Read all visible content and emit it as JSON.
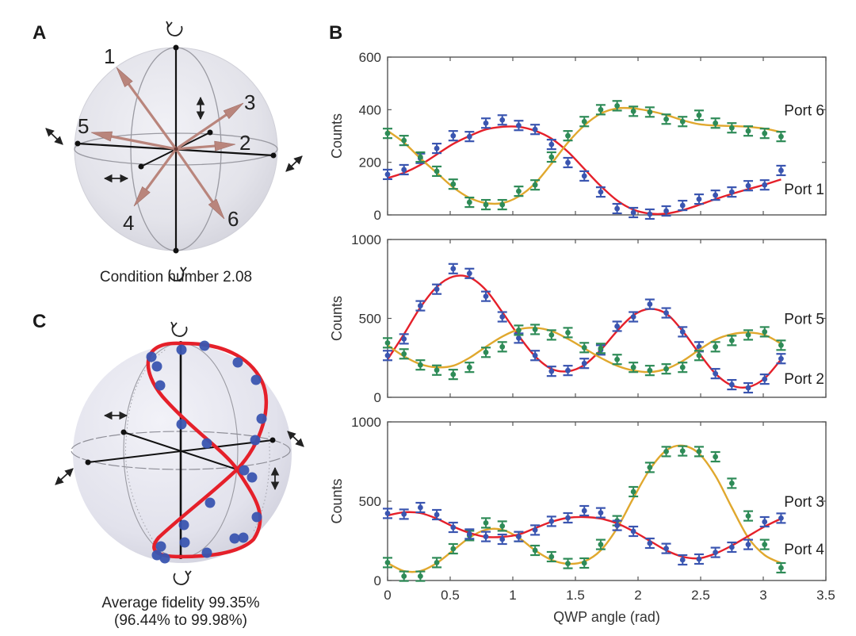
{
  "panels": {
    "A": {
      "letter": "A",
      "caption": "Condition number 2.08",
      "vector_labels": [
        "1",
        "2",
        "3",
        "4",
        "5",
        "6"
      ],
      "arrow_color": "#b9857c"
    },
    "B": {
      "letter": "B"
    },
    "C": {
      "letter": "C",
      "caption_line1": "Average fidelity 99.35%",
      "caption_line2": "(96.44% to 99.98%)",
      "curve_color": "#e5202a",
      "point_color": "#3a55b0"
    }
  },
  "chart_data": [
    {
      "type": "scatter",
      "panel": "B-top",
      "xlabel": "",
      "ylabel": "Counts",
      "xlim": [
        0,
        3.5
      ],
      "ylim": [
        0,
        600
      ],
      "xticks": [
        0,
        0.5,
        1,
        1.5,
        2,
        2.5,
        3,
        3.5
      ],
      "yticks": [
        0,
        200,
        400,
        600
      ],
      "ytick_labels": [
        "0",
        "200",
        "400",
        "600"
      ],
      "show_xtick_labels": false,
      "x": [
        0,
        0.131,
        0.262,
        0.393,
        0.524,
        0.654,
        0.785,
        0.916,
        1.047,
        1.178,
        1.309,
        1.44,
        1.571,
        1.702,
        1.833,
        1.963,
        2.094,
        2.225,
        2.356,
        2.487,
        2.618,
        2.749,
        2.88,
        3.011,
        3.142
      ],
      "series": [
        {
          "name": "Port 1",
          "marker_color": "#3a55b0",
          "fit_color": "#e5202a",
          "values": [
            154,
            172,
            215,
            253,
            301,
            298,
            349,
            361,
            340,
            325,
            268,
            199,
            148,
            87,
            24,
            9,
            3,
            15,
            36,
            60,
            75,
            87,
            111,
            114,
            169
          ],
          "fit": [
            140,
            160,
            190,
            230,
            270,
            300,
            325,
            335,
            335,
            320,
            290,
            240,
            175,
            110,
            55,
            20,
            5,
            5,
            18,
            38,
            60,
            80,
            98,
            115,
            135
          ],
          "label_value": 100
        },
        {
          "name": "Port 6",
          "marker_color": "#2e8b57",
          "fit_color": "#e0a82e",
          "values": [
            310,
            283,
            220,
            166,
            117,
            48,
            39,
            39,
            90,
            114,
            220,
            301,
            355,
            400,
            415,
            394,
            391,
            364,
            355,
            379,
            349,
            331,
            319,
            310,
            298
          ],
          "fit": [
            320,
            275,
            215,
            160,
            105,
            65,
            45,
            45,
            70,
            120,
            195,
            275,
            340,
            385,
            405,
            405,
            395,
            380,
            360,
            345,
            340,
            338,
            335,
            328,
            315
          ],
          "label_value": 400
        }
      ]
    },
    {
      "type": "scatter",
      "panel": "B-middle",
      "xlabel": "",
      "ylabel": "Counts",
      "xlim": [
        0,
        3.5
      ],
      "ylim": [
        0,
        1000
      ],
      "xticks": [
        0,
        0.5,
        1,
        1.5,
        2,
        2.5,
        3,
        3.5
      ],
      "yticks": [
        0,
        500,
        1000
      ],
      "ytick_labels": [
        "0",
        "500",
        "1000"
      ],
      "show_xtick_labels": false,
      "x": [
        0,
        0.131,
        0.262,
        0.393,
        0.524,
        0.654,
        0.785,
        0.916,
        1.047,
        1.178,
        1.309,
        1.44,
        1.571,
        1.702,
        1.833,
        1.963,
        2.094,
        2.225,
        2.356,
        2.487,
        2.618,
        2.749,
        2.88,
        3.011,
        3.142
      ],
      "series": [
        {
          "name": "Port 2",
          "marker_color": "#3a55b0",
          "fit_color": "#e5202a",
          "values": [
            265,
            370,
            580,
            685,
            815,
            785,
            640,
            510,
            375,
            265,
            165,
            170,
            215,
            300,
            450,
            510,
            590,
            535,
            415,
            320,
            150,
            80,
            60,
            115,
            245
          ],
          "fit": [
            240,
            400,
            570,
            700,
            765,
            760,
            680,
            540,
            390,
            260,
            180,
            165,
            205,
            300,
            420,
            520,
            560,
            530,
            420,
            280,
            150,
            75,
            65,
            120,
            240
          ],
          "label_value": 120
        },
        {
          "name": "Port 5",
          "marker_color": "#2e8b57",
          "fit_color": "#e0a82e",
          "values": [
            345,
            275,
            205,
            172,
            145,
            190,
            285,
            320,
            425,
            430,
            395,
            410,
            315,
            310,
            240,
            190,
            170,
            180,
            190,
            265,
            320,
            360,
            395,
            415,
            330
          ],
          "fit": [
            330,
            260,
            210,
            190,
            200,
            250,
            320,
            385,
            430,
            440,
            420,
            370,
            310,
            250,
            200,
            170,
            160,
            180,
            230,
            300,
            365,
            400,
            410,
            395,
            340
          ],
          "label_value": 500
        }
      ]
    },
    {
      "type": "scatter",
      "panel": "B-bottom",
      "xlabel": "QWP angle (rad)",
      "ylabel": "Counts",
      "xlim": [
        0,
        3.5
      ],
      "ylim": [
        0,
        1000
      ],
      "xticks": [
        0,
        0.5,
        1,
        1.5,
        2,
        2.5,
        3,
        3.5
      ],
      "xtick_labels": [
        "0",
        "0.5",
        "1",
        "1.5",
        "2",
        "2.5",
        "3",
        "3.5"
      ],
      "yticks": [
        0,
        500,
        1000
      ],
      "ytick_labels": [
        "0",
        "500",
        "1000"
      ],
      "show_xtick_labels": true,
      "x": [
        0,
        0.131,
        0.262,
        0.393,
        0.524,
        0.654,
        0.785,
        0.916,
        1.047,
        1.178,
        1.309,
        1.44,
        1.571,
        1.702,
        1.833,
        1.963,
        2.094,
        2.225,
        2.356,
        2.487,
        2.618,
        2.749,
        2.88,
        3.011,
        3.142
      ],
      "series": [
        {
          "name": "Port 3",
          "marker_color": "#2e8b57",
          "fit_color": "#e0a82e",
          "values": [
            113,
            27,
            27,
            113,
            200,
            283,
            363,
            343,
            277,
            190,
            150,
            107,
            110,
            227,
            377,
            560,
            713,
            813,
            817,
            813,
            780,
            613,
            407,
            227,
            80
          ],
          "fit": [
            110,
            60,
            60,
            110,
            190,
            270,
            320,
            320,
            270,
            190,
            130,
            105,
            120,
            190,
            330,
            520,
            700,
            820,
            850,
            800,
            660,
            460,
            270,
            160,
            110
          ],
          "label_value": 500
        },
        {
          "name": "Port 4",
          "marker_color": "#3a55b0",
          "fit_color": "#e5202a",
          "values": [
            423,
            418,
            460,
            415,
            335,
            293,
            277,
            260,
            277,
            318,
            373,
            395,
            440,
            427,
            347,
            310,
            235,
            202,
            130,
            135,
            177,
            210,
            227,
            370,
            393
          ],
          "fit": [
            410,
            430,
            425,
            390,
            340,
            300,
            275,
            275,
            290,
            330,
            370,
            395,
            400,
            390,
            360,
            310,
            250,
            190,
            150,
            140,
            170,
            220,
            280,
            340,
            390
          ],
          "label_value": 200
        }
      ]
    }
  ]
}
